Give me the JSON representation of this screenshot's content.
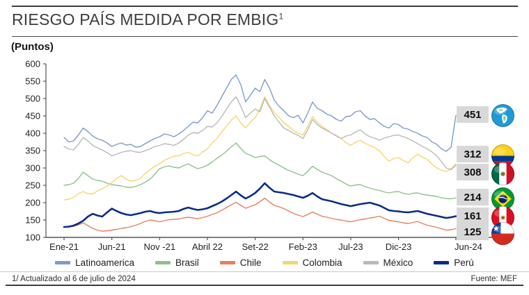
{
  "header": {
    "title": "RIESGO PAÍS MEDIDA POR EMBIG",
    "title_sup": "1",
    "units": "(Puntos)"
  },
  "footer": {
    "note": "1/ Actualizado al 6 de julio de 2024",
    "source": "Fuente: MEF"
  },
  "colors": {
    "rule": "#3b3b3b",
    "axis": "#555555",
    "badge_bg": "#d8d8d8",
    "latinoamerica": "#7d9bce",
    "brasil": "#8fc08d",
    "chile": "#e5805e",
    "colombia": "#f5d66f",
    "mexico": "#b9b9bb",
    "peru": "#0a2c86"
  },
  "badges": [
    {
      "series": "Latinoamerica",
      "value": "451",
      "flag": "americas"
    },
    {
      "series": "Colombia",
      "value": "312",
      "flag": "colombia"
    },
    {
      "series": "México",
      "value": "308",
      "flag": "mexico"
    },
    {
      "series": "Brasil",
      "value": "214",
      "flag": "brasil"
    },
    {
      "series": "Perú",
      "value": "161",
      "flag": "peru"
    },
    {
      "series": "Chile",
      "value": "125",
      "flag": "chile"
    }
  ],
  "chart_data": {
    "type": "line",
    "title": "RIESGO PAÍS MEDIDA POR EMBIG (Puntos)",
    "ylabel": "Puntos",
    "ylim": [
      100,
      600
    ],
    "y_ticks": [
      100,
      150,
      200,
      250,
      300,
      350,
      400,
      450,
      500,
      550,
      600
    ],
    "grid": false,
    "legend_position": "bottom",
    "x_unit": "months since Ene-2021, sampled every half month (Ene-21 to Jun-24)",
    "x_tick_months": [
      0,
      5,
      10,
      15,
      20,
      25,
      30,
      35,
      41
    ],
    "x_tick_labels": [
      "Ene-21",
      "Jun-21",
      "Nov -21",
      "Abril 22",
      "Set-22",
      "Feb-23",
      "Jul-23",
      "Dic-23",
      "Jun-24"
    ],
    "series": [
      {
        "name": "Latinoamerica",
        "color_key": "latinoamerica",
        "end_value": 451,
        "line_width": 1.4,
        "values": [
          388,
          375,
          378,
          395,
          415,
          405,
          392,
          384,
          380,
          372,
          362,
          368,
          372,
          366,
          368,
          360,
          362,
          370,
          378,
          385,
          390,
          398,
          395,
          390,
          398,
          408,
          420,
          432,
          430,
          445,
          465,
          458,
          480,
          505,
          530,
          555,
          568,
          540,
          490,
          510,
          530,
          520,
          555,
          530,
          495,
          478,
          465,
          450,
          445,
          452,
          430,
          458,
          490,
          472,
          465,
          455,
          450,
          440,
          435,
          448,
          450,
          462,
          465,
          450,
          440,
          442,
          430,
          420,
          415,
          428,
          425,
          415,
          412,
          405,
          400,
          392,
          388,
          375,
          368,
          355,
          348,
          360,
          451
        ]
      },
      {
        "name": "Brasil",
        "color_key": "brasil",
        "end_value": 214,
        "line_width": 1.4,
        "values": [
          250,
          252,
          256,
          270,
          288,
          278,
          268,
          264,
          262,
          256,
          252,
          250,
          248,
          245,
          244,
          247,
          252,
          259,
          268,
          282,
          298,
          303,
          306,
          302,
          300,
          307,
          312,
          304,
          298,
          302,
          308,
          317,
          328,
          337,
          348,
          361,
          372,
          356,
          342,
          337,
          330,
          333,
          335,
          324,
          315,
          308,
          300,
          293,
          288,
          282,
          278,
          290,
          305,
          296,
          288,
          283,
          278,
          269,
          262,
          254,
          248,
          251,
          252,
          246,
          242,
          238,
          235,
          231,
          228,
          231,
          232,
          227,
          224,
          227,
          228,
          224,
          222,
          220,
          218,
          214,
          212,
          211,
          214
        ]
      },
      {
        "name": "Chile",
        "color_key": "chile",
        "end_value": 125,
        "line_width": 1.4,
        "values": [
          130,
          130,
          132,
          136,
          142,
          134,
          126,
          121,
          118,
          119,
          121,
          123,
          126,
          128,
          131,
          135,
          140,
          146,
          150,
          148,
          145,
          148,
          151,
          152,
          153,
          156,
          158,
          156,
          154,
          157,
          161,
          166,
          171,
          178,
          186,
          194,
          201,
          192,
          184,
          189,
          194,
          203,
          213,
          202,
          192,
          188,
          183,
          176,
          169,
          164,
          160,
          166,
          173,
          167,
          161,
          158,
          155,
          152,
          150,
          147,
          145,
          148,
          151,
          153,
          156,
          158,
          161,
          155,
          149,
          147,
          145,
          142,
          140,
          143,
          146,
          140,
          135,
          132,
          129,
          125,
          121,
          122,
          125
        ]
      },
      {
        "name": "Colombia",
        "color_key": "colombia",
        "end_value": 312,
        "line_width": 1.4,
        "values": [
          208,
          210,
          215,
          226,
          232,
          226,
          225,
          234,
          240,
          248,
          258,
          270,
          278,
          268,
          262,
          264,
          270,
          284,
          295,
          305,
          312,
          322,
          328,
          334,
          335,
          342,
          345,
          338,
          335,
          346,
          355,
          372,
          385,
          404,
          420,
          438,
          450,
          430,
          415,
          432,
          445,
          470,
          505,
          480,
          460,
          446,
          430,
          420,
          408,
          400,
          395,
          420,
          448,
          432,
          420,
          410,
          400,
          394,
          385,
          373,
          365,
          374,
          380,
          371,
          365,
          359,
          350,
          333,
          320,
          327,
          330,
          321,
          315,
          329,
          340,
          331,
          325,
          311,
          300,
          293,
          290,
          298,
          312
        ]
      },
      {
        "name": "México",
        "color_key": "mexico",
        "end_value": 308,
        "line_width": 1.4,
        "values": [
          362,
          355,
          352,
          368,
          388,
          378,
          365,
          358,
          352,
          344,
          335,
          340,
          345,
          348,
          350,
          346,
          345,
          350,
          355,
          362,
          365,
          370,
          368,
          365,
          372,
          382,
          395,
          402,
          400,
          408,
          420,
          418,
          430,
          448,
          470,
          490,
          505,
          478,
          445,
          458,
          470,
          462,
          500,
          475,
          450,
          432,
          415,
          408,
          400,
          394,
          385,
          410,
          440,
          425,
          415,
          408,
          400,
          392,
          385,
          392,
          395,
          404,
          410,
          398,
          390,
          386,
          380,
          386,
          390,
          394,
          395,
          390,
          385,
          378,
          370,
          362,
          355,
          346,
          335,
          318,
          300,
          295,
          308
        ]
      },
      {
        "name": "Perú",
        "color_key": "peru",
        "end_value": 161,
        "line_width": 2.6,
        "values": [
          130,
          131,
          134,
          140,
          148,
          160,
          168,
          163,
          160,
          172,
          183,
          176,
          170,
          166,
          164,
          167,
          170,
          174,
          176,
          172,
          170,
          172,
          173,
          174,
          176,
          182,
          186,
          182,
          179,
          181,
          184,
          190,
          196,
          203,
          212,
          222,
          232,
          221,
          212,
          219,
          228,
          241,
          256,
          243,
          232,
          230,
          228,
          225,
          222,
          218,
          214,
          220,
          228,
          218,
          210,
          207,
          204,
          200,
          196,
          193,
          190,
          193,
          196,
          198,
          200,
          196,
          192,
          185,
          178,
          176,
          175,
          173,
          172,
          174,
          176,
          172,
          168,
          165,
          162,
          159,
          156,
          158,
          161
        ]
      }
    ]
  }
}
